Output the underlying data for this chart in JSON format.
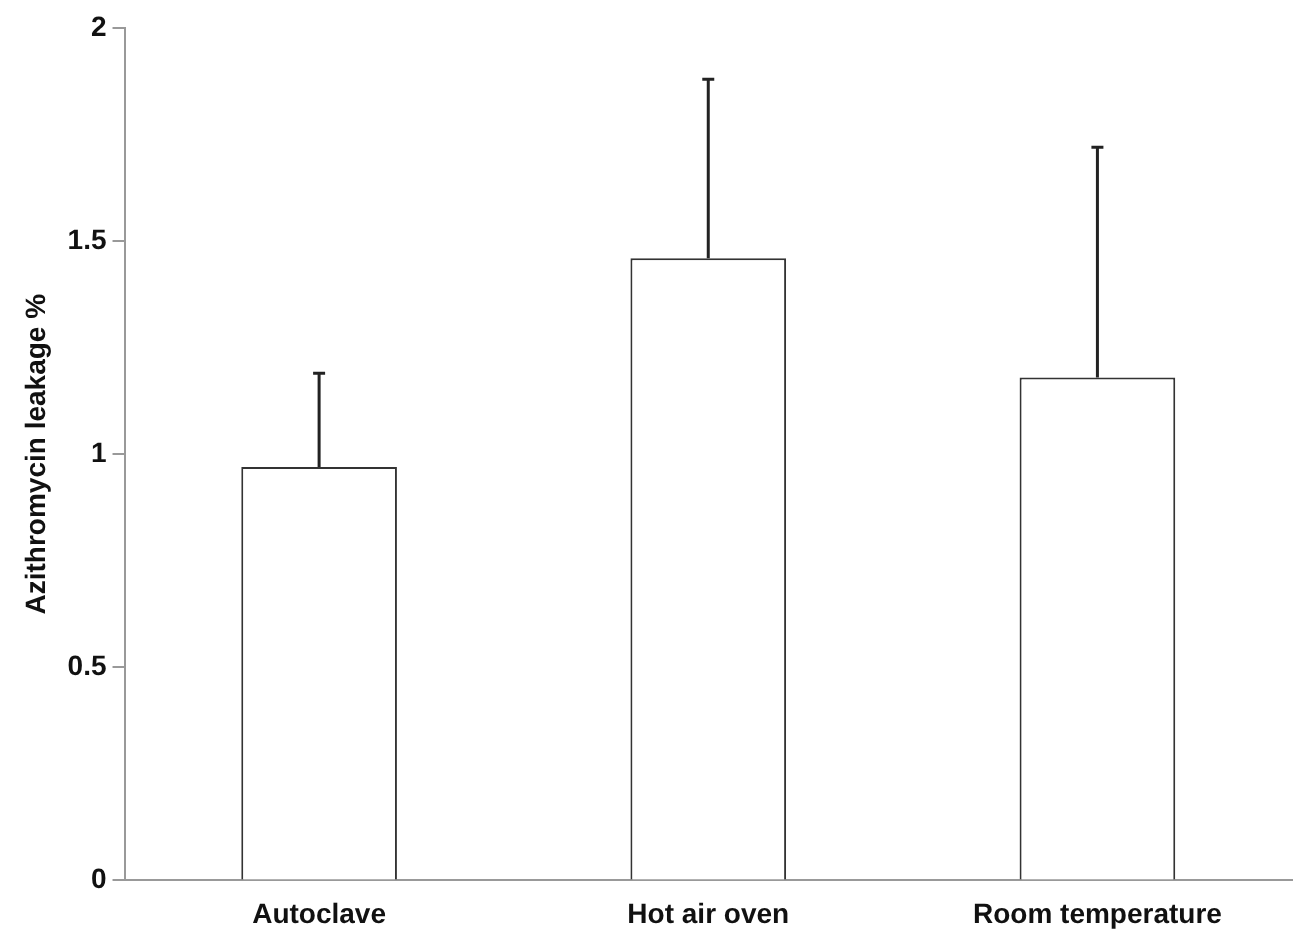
{
  "chart_data": {
    "type": "bar",
    "ylabel": "Azithromycin leakage %",
    "categories": [
      "Autoclave",
      "Hot air oven",
      "Room temperature"
    ],
    "values": [
      0.97,
      1.46,
      1.18
    ],
    "errors": [
      [
        0.97,
        1.19
      ],
      [
        1.46,
        1.88
      ],
      [
        1.18,
        1.72
      ]
    ],
    "color": "#ffffff",
    "ylim": [
      0,
      2
    ],
    "yticks": [
      0,
      0.5,
      1,
      1.5,
      2
    ],
    "grid": false,
    "legend": false
  }
}
